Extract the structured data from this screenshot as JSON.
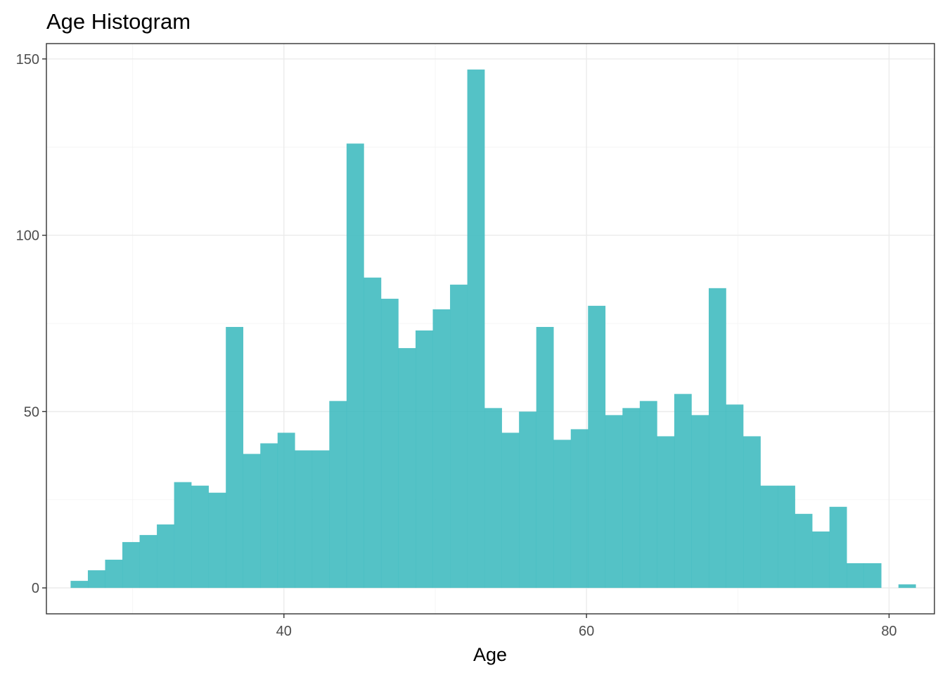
{
  "chart_data": {
    "type": "bar",
    "title": "Age Histogram",
    "xlabel": "Age",
    "ylabel": "",
    "xlim": [
      24.3,
      83.0
    ],
    "ylim": [
      -7.35,
      154.35
    ],
    "x_ticks": [
      40,
      60,
      80
    ],
    "x_tick_labels": [
      "40",
      "60",
      "80"
    ],
    "y_ticks": [
      0,
      50,
      100,
      150
    ],
    "y_tick_labels": [
      "0",
      "50",
      "100",
      "150"
    ],
    "grid": true,
    "bar_color": "#3bb9bd",
    "bin_width": 1.14,
    "bins_x_start": [
      25.9,
      27.04,
      28.18,
      29.32,
      30.46,
      31.6,
      32.74,
      33.88,
      35.02,
      36.16,
      37.3,
      38.44,
      39.58,
      40.72,
      41.86,
      43.0,
      44.14,
      45.28,
      46.42,
      47.56,
      48.7,
      49.84,
      50.98,
      52.12,
      53.26,
      54.4,
      55.54,
      56.68,
      57.82,
      58.96,
      60.1,
      61.24,
      62.38,
      63.52,
      64.66,
      65.8,
      66.94,
      68.08,
      69.22,
      70.36,
      71.5,
      72.64,
      73.78,
      74.92,
      76.06,
      77.2,
      78.34,
      79.48,
      80.62
    ],
    "counts": [
      2,
      5,
      8,
      13,
      15,
      18,
      30,
      29,
      27,
      74,
      38,
      41,
      44,
      39,
      39,
      53,
      126,
      88,
      82,
      68,
      73,
      79,
      86,
      147,
      51,
      44,
      50,
      74,
      42,
      45,
      80,
      49,
      51,
      53,
      43,
      55,
      49,
      85,
      52,
      43,
      29,
      29,
      21,
      16,
      23,
      7,
      7,
      0,
      1
    ]
  }
}
